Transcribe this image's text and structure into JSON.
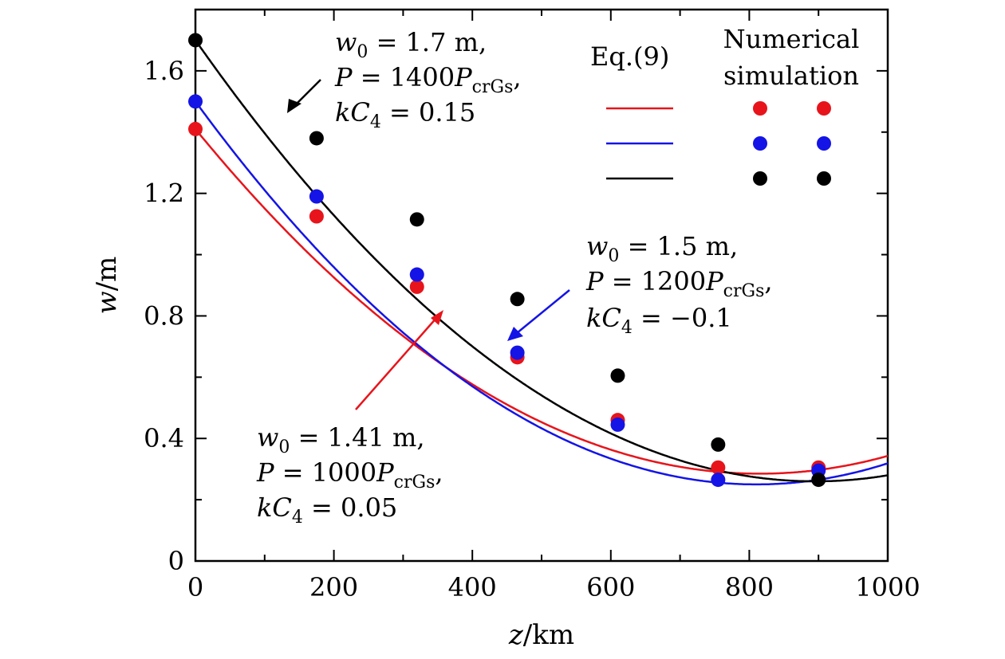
{
  "chart_data": {
    "type": "line",
    "xlabel": {
      "var": "z",
      "unit": "/km"
    },
    "ylabel": {
      "var": "w",
      "unit": "/m"
    },
    "xlim": [
      0,
      1000
    ],
    "ylim": [
      0,
      1.8
    ],
    "x_ticks": [
      0,
      200,
      400,
      600,
      800,
      1000
    ],
    "x_tick_labels": [
      "0",
      "200",
      "400",
      "600",
      "800",
      "1000"
    ],
    "y_ticks": [
      0,
      0.4,
      0.8,
      1.2,
      1.6
    ],
    "y_tick_labels": [
      "0",
      "0.4",
      "0.8",
      "1.2",
      "1.6"
    ],
    "legend": {
      "line_header": "Eq.(9)",
      "points_header_line1": "Numerical",
      "points_header_line2": "simulation"
    },
    "series": [
      {
        "name": "w0 = 1.41 m, P = 1000 PcrGs, kC4 = 0.05",
        "color": "#e8141b",
        "w0": 1.41,
        "x_min_line": 815,
        "y_min_line": 0.285,
        "points_x": [
          0,
          175,
          320,
          465,
          610,
          755,
          900
        ],
        "points_y": [
          1.41,
          1.125,
          0.895,
          0.665,
          0.46,
          0.305,
          0.305
        ],
        "annotation": {
          "w0_label": "w",
          "w0_sub": "0",
          "w0_value": " = 1.41 m,",
          "p_label": "P",
          "p_value": " = 1000",
          "p_unit": "P",
          "p_sub": "crGs",
          "p_end": ",",
          "kc_label": "kC",
          "kc_sub": "4",
          "kc_value": " = 0.05"
        }
      },
      {
        "name": "w0 = 1.5 m, P = 1200 PcrGs, kC4 = -0.1",
        "color": "#1414e6",
        "w0": 1.5,
        "x_min_line": 810,
        "y_min_line": 0.25,
        "points_x": [
          0,
          175,
          320,
          465,
          610,
          755,
          900
        ],
        "points_y": [
          1.5,
          1.19,
          0.935,
          0.68,
          0.445,
          0.265,
          0.295
        ],
        "annotation": {
          "w0_label": "w",
          "w0_sub": "0",
          "w0_value": " = 1.5 m,",
          "p_label": "P",
          "p_value": " = 1200",
          "p_unit": "P",
          "p_sub": "crGs",
          "p_end": ",",
          "kc_label": "kC",
          "kc_sub": "4",
          "kc_value": " = −0.1"
        }
      },
      {
        "name": "w0 = 1.7 m, P = 1400 PcrGs, kC4 = 0.15",
        "color": "#000000",
        "w0": 1.7,
        "x_min_line": 895,
        "y_min_line": 0.26,
        "points_x": [
          0,
          175,
          320,
          465,
          610,
          755,
          900
        ],
        "points_y": [
          1.7,
          1.38,
          1.115,
          0.855,
          0.605,
          0.38,
          0.265
        ],
        "annotation": {
          "w0_label": "w",
          "w0_sub": "0",
          "w0_value": " = 1.7 m,",
          "p_label": "P",
          "p_value": " = 1400",
          "p_unit": "P",
          "p_sub": "crGs",
          "p_end": ",",
          "kc_label": "kC",
          "kc_sub": "4",
          "kc_value": " = 0.15"
        }
      }
    ]
  }
}
